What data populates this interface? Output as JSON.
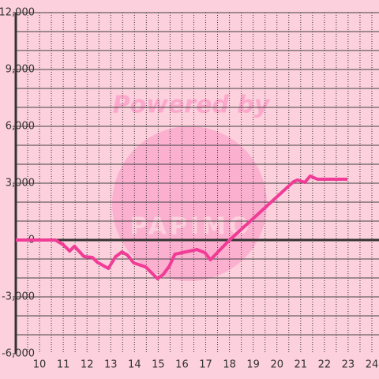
{
  "chart_data": {
    "type": "line",
    "watermark": {
      "title": "Powered by",
      "brand": "PAPIMO"
    },
    "x": [
      9.0,
      10.67,
      11.0,
      11.27,
      11.47,
      11.87,
      12.23,
      12.43,
      12.9,
      13.2,
      13.47,
      13.7,
      13.97,
      14.47,
      14.97,
      15.2,
      15.47,
      15.7,
      16.63,
      16.97,
      17.2,
      17.97,
      20.7,
      20.87,
      21.17,
      21.4,
      21.7,
      22.97
    ],
    "series": [
      {
        "color": "#f03c96",
        "values": [
          0,
          0,
          -250,
          -580,
          -330,
          -870,
          -920,
          -1170,
          -1500,
          -880,
          -630,
          -790,
          -1210,
          -1420,
          -2040,
          -1830,
          -1375,
          -750,
          -500,
          -670,
          -1040,
          -40,
          3080,
          3170,
          3040,
          3375,
          3210,
          3210
        ]
      }
    ],
    "xlim": [
      9,
      24.3
    ],
    "xticks": [
      10,
      11,
      12,
      13,
      14,
      15,
      16,
      17,
      18,
      19,
      20,
      21,
      22,
      23,
      24
    ],
    "xgrid": [
      9.5,
      10,
      10.5,
      11,
      11.5,
      12,
      12.5,
      13,
      13.5,
      14,
      14.5,
      15,
      15.5,
      16,
      16.5,
      17,
      17.5,
      18,
      18.5,
      19,
      19.5,
      20,
      20.5,
      21,
      21.5,
      22,
      22.5,
      23,
      23.5,
      24
    ],
    "ylim": [
      -6000,
      12000
    ],
    "yticks": [
      {
        "value": -6000,
        "label": "-6,000"
      },
      {
        "value": -3000,
        "label": "-3,000"
      },
      0,
      {
        "value": 3000,
        "label": "3,000"
      },
      {
        "value": 6000,
        "label": "6,000"
      },
      {
        "value": 9000,
        "label": "9,000"
      },
      {
        "value": 12000,
        "label": "12,000"
      }
    ],
    "ygrid": [
      -5000,
      -4000,
      -3000,
      -2000,
      -1000,
      1000,
      2000,
      3000,
      4000,
      5000,
      6000,
      7000,
      8000,
      9000,
      10000,
      11000,
      12000
    ]
  }
}
